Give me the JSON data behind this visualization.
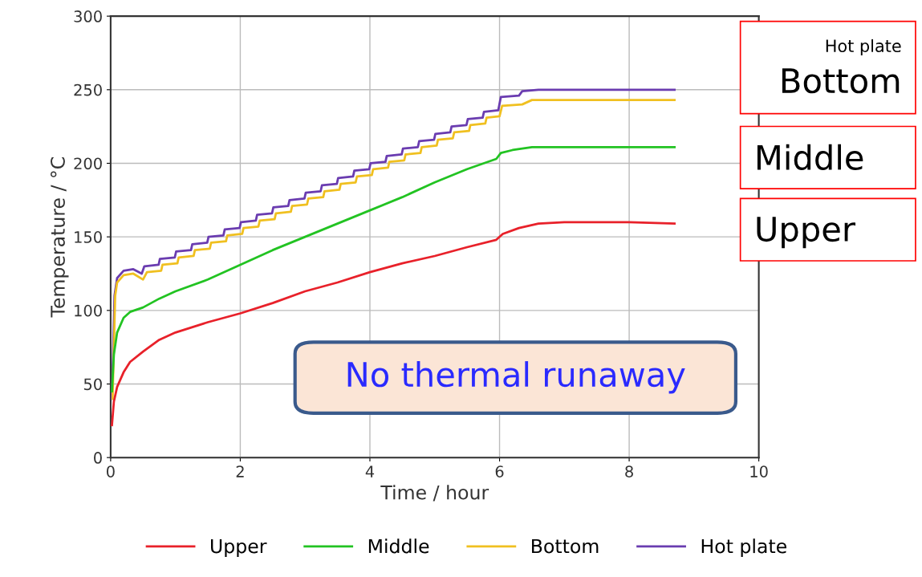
{
  "chart_data": {
    "type": "line",
    "xlabel": "Time / hour",
    "ylabel": "Temperature / °C",
    "xlim": [
      0,
      10
    ],
    "xticks": [
      0,
      2,
      4,
      6,
      8,
      10
    ],
    "ylim": [
      0,
      300
    ],
    "yticks": [
      0,
      50,
      100,
      150,
      200,
      250,
      300
    ],
    "grid": true,
    "legend": "bottom",
    "marker": "none",
    "line_style": "solid",
    "series": [
      {
        "name": "Upper",
        "color": "#e8212a",
        "x": [
          0.02,
          0.05,
          0.1,
          0.2,
          0.3,
          0.5,
          0.75,
          1,
          1.5,
          2,
          2.5,
          3,
          3.5,
          4,
          4.5,
          5,
          5.5,
          5.95,
          6.05,
          6.3,
          6.6,
          7,
          8,
          8.7
        ],
        "values": [
          22,
          38,
          48,
          58,
          65,
          72,
          80,
          85,
          92,
          98,
          105,
          113,
          119,
          126,
          132,
          137,
          143,
          148,
          152,
          156,
          159,
          160,
          160,
          159
        ]
      },
      {
        "name": "Middle",
        "color": "#22c322",
        "x": [
          0.02,
          0.05,
          0.1,
          0.2,
          0.3,
          0.5,
          0.75,
          1,
          1.5,
          2,
          2.5,
          3,
          3.5,
          4,
          4.5,
          5,
          5.5,
          5.95,
          6.02,
          6.2,
          6.5,
          7,
          8,
          8.7
        ],
        "values": [
          45,
          70,
          85,
          95,
          99,
          102,
          108,
          113,
          121,
          131,
          141,
          150,
          159,
          168,
          177,
          187,
          196,
          203,
          207,
          209,
          211,
          211,
          211,
          211
        ]
      },
      {
        "name": "Bottom",
        "color": "#f0c020",
        "x": [
          0.03,
          0.07,
          0.1,
          0.2,
          0.35,
          0.5,
          0.56,
          0.78,
          0.8,
          1.03,
          1.05,
          1.28,
          1.3,
          1.53,
          1.55,
          1.78,
          1.8,
          2.03,
          2.05,
          2.28,
          2.3,
          2.53,
          2.55,
          2.78,
          2.8,
          3.03,
          3.05,
          3.28,
          3.3,
          3.53,
          3.55,
          3.78,
          3.8,
          4.03,
          4.05,
          4.28,
          4.3,
          4.53,
          4.55,
          4.78,
          4.8,
          5.03,
          5.05,
          5.28,
          5.3,
          5.53,
          5.55,
          5.78,
          5.8,
          6.0,
          6.04,
          6.35,
          6.5,
          8.7
        ],
        "values": [
          40,
          110,
          119,
          124,
          125,
          121,
          126,
          127,
          131,
          132,
          136,
          137,
          141,
          142,
          146,
          147,
          151,
          152,
          156,
          157,
          161,
          162,
          166,
          167,
          171,
          172,
          176,
          177,
          181,
          182,
          186,
          187,
          191,
          192,
          196,
          197,
          201,
          202,
          206,
          207,
          211,
          212,
          216,
          217,
          221,
          222,
          226,
          227,
          231,
          232,
          239,
          240,
          243,
          243
        ]
      },
      {
        "name": "Hot plate",
        "color": "#6a3cb0",
        "x": [
          0.02,
          0.06,
          0.1,
          0.2,
          0.35,
          0.48,
          0.52,
          0.74,
          0.76,
          0.99,
          1.01,
          1.24,
          1.26,
          1.49,
          1.51,
          1.74,
          1.76,
          1.99,
          2.01,
          2.24,
          2.26,
          2.49,
          2.51,
          2.74,
          2.76,
          2.99,
          3.01,
          3.24,
          3.26,
          3.49,
          3.51,
          3.74,
          3.76,
          3.99,
          4.01,
          4.24,
          4.26,
          4.49,
          4.51,
          4.74,
          4.76,
          4.99,
          5.01,
          5.24,
          5.26,
          5.49,
          5.51,
          5.74,
          5.76,
          5.98,
          6.02,
          6.3,
          6.35,
          6.6,
          8.7
        ],
        "values": [
          40,
          110,
          122,
          127,
          128,
          125,
          130,
          131,
          135,
          136,
          140,
          141,
          145,
          146,
          150,
          151,
          155,
          156,
          160,
          161,
          165,
          166,
          170,
          171,
          175,
          176,
          180,
          181,
          185,
          186,
          190,
          191,
          195,
          196,
          200,
          201,
          205,
          206,
          210,
          211,
          215,
          216,
          220,
          221,
          225,
          226,
          230,
          231,
          235,
          236,
          245,
          246,
          249,
          250,
          250
        ]
      }
    ],
    "annotations": [
      "Hot plate",
      "Bottom",
      "Middle",
      "Upper",
      "No thermal runaway"
    ]
  }
}
